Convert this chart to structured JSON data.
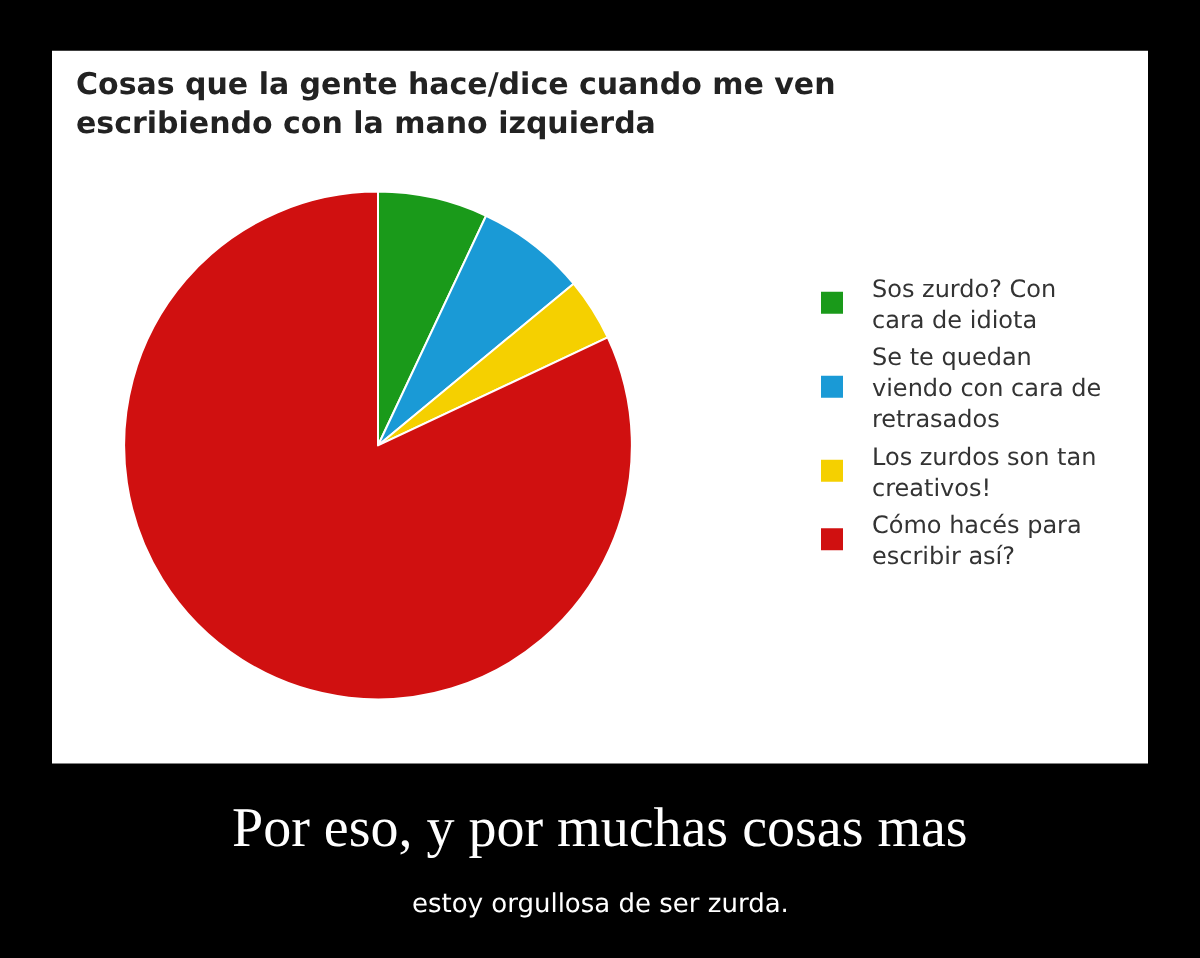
{
  "chart_data": {
    "type": "pie",
    "title": "Cosas que la gente hace/dice cuando me ven escribiendo con la mano izquierda",
    "categories": [
      "Sos zurdo? Con cara de idiota",
      "Se te quedan viendo con cara de retrasados",
      "Los zurdos son tan creativos!",
      "Cómo hacés para escribir así?"
    ],
    "values": [
      7,
      7,
      4,
      82
    ],
    "colors": [
      "#1a9a1a",
      "#1a9ad6",
      "#f5d000",
      "#d01010"
    ],
    "legend": "right",
    "annotations": [
      "Por eso, y por muchas cosas mas",
      "estoy orgullosa de ser zurda."
    ]
  }
}
